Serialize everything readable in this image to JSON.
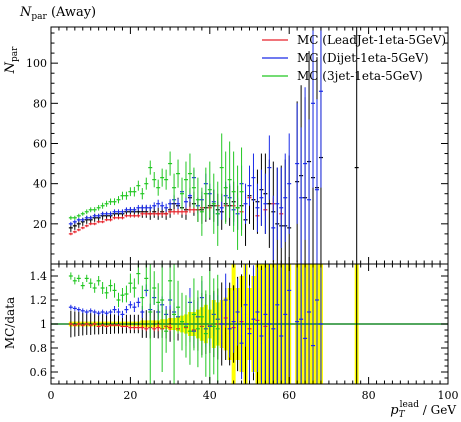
{
  "chart_data": {
    "type": "scatter",
    "title": "N_par (Away)",
    "title_main": "N",
    "title_sub": "par",
    "title_suffix": " (Away)",
    "ylabel_main": "N",
    "ylabel_sub": "par",
    "xlabel_main": "p",
    "xlabel_sub": "T",
    "xlabel_sup": "lead",
    "xlabel_suffix": " / GeV",
    "ratio_ylabel": "MC/data",
    "xlim": [
      0,
      100
    ],
    "ylim": [
      0,
      118
    ],
    "ratio_ylim": [
      0.5,
      1.5
    ],
    "x_ticks": [
      "0",
      "20",
      "40",
      "60",
      "80",
      "100"
    ],
    "y_ticks": [
      "20",
      "40",
      "60",
      "80",
      "100"
    ],
    "ratio_y_ticks": [
      "0.6",
      "0.8",
      "1",
      "1.2",
      "1.4"
    ],
    "legend_position": "top-right",
    "colors": {
      "data": "#000000",
      "red": "#e8222a",
      "blue": "#1a2be8",
      "green": "#22c722",
      "band": "#ffff00",
      "unity": "#1a8a2a"
    },
    "data": {
      "x": [
        5,
        6,
        7,
        8,
        9,
        10,
        11,
        12,
        13,
        14,
        15,
        16,
        17,
        18,
        19,
        20,
        21,
        22,
        23,
        24,
        25,
        26,
        27,
        28,
        29,
        30,
        31,
        32,
        33,
        34,
        35,
        36,
        37,
        38,
        39,
        40,
        41,
        42,
        43,
        44,
        45,
        46,
        47,
        48,
        49,
        50,
        51,
        52,
        53,
        54,
        55,
        56,
        57,
        58,
        59,
        60,
        62,
        63,
        64,
        65,
        66,
        67,
        68,
        77
      ],
      "y": [
        18,
        19,
        20,
        21,
        22,
        22,
        23,
        23,
        24,
        24,
        24,
        25,
        25,
        25,
        26,
        26,
        26,
        26,
        26,
        26,
        25,
        26,
        25,
        26,
        25,
        27,
        30,
        29,
        28,
        27,
        33,
        30,
        27,
        27,
        28,
        29,
        29,
        27,
        26,
        30,
        29,
        31,
        28,
        29,
        22,
        34,
        32,
        31,
        37,
        35,
        30,
        26,
        20,
        19,
        19,
        18,
        41,
        44,
        33,
        51,
        43,
        38,
        53,
        48
      ],
      "err": [
        2,
        2,
        2,
        2,
        2,
        2,
        2,
        2,
        2,
        2,
        2,
        2,
        2,
        2,
        2,
        2,
        2,
        2,
        3,
        3,
        3,
        3,
        3,
        3,
        3,
        4,
        4,
        4,
        5,
        5,
        5,
        6,
        6,
        7,
        7,
        7,
        8,
        8,
        9,
        9,
        10,
        10,
        11,
        12,
        13,
        14,
        15,
        16,
        18,
        20,
        22,
        25,
        28,
        30,
        33,
        36,
        40,
        45,
        50,
        55,
        60,
        65,
        70,
        85
      ]
    },
    "series": [
      {
        "name": "MC (LeadJet-1eta-5GeV)",
        "color": "#e8222a",
        "x": [
          5,
          6,
          7,
          8,
          9,
          10,
          11,
          12,
          13,
          14,
          15,
          16,
          17,
          18,
          19,
          20,
          21,
          22,
          23,
          24,
          25,
          26,
          27,
          28,
          29,
          30,
          31,
          32,
          33,
          34,
          35,
          36,
          37,
          38,
          40,
          42,
          44,
          46,
          48,
          50,
          52,
          54,
          56,
          58
        ],
        "y": [
          15,
          16,
          17,
          18,
          19,
          20,
          20,
          21,
          21,
          22,
          22,
          23,
          23,
          23,
          24,
          24,
          24,
          24,
          25,
          25,
          25,
          25,
          25,
          25,
          25,
          26,
          26,
          26,
          26,
          26,
          27,
          27,
          27,
          28,
          28,
          29,
          29,
          29,
          26,
          33,
          24,
          27,
          30,
          25
        ],
        "err": [
          0.7,
          0.7,
          0.7,
          0.7,
          0.7,
          0.7,
          0.7,
          0.7,
          0.7,
          0.7,
          0.8,
          0.8,
          0.8,
          0.8,
          0.8,
          0.9,
          0.9,
          0.9,
          1,
          1,
          1,
          1,
          1.2,
          1.2,
          1.2,
          1.2,
          1.4,
          1.4,
          1.4,
          1.5,
          1.5,
          1.5,
          1.7,
          1.7,
          1.8,
          2,
          2,
          2.2,
          2.4,
          2.6,
          2.8,
          3,
          3,
          3
        ]
      },
      {
        "name": "MC (Dijet-1eta-5GeV)",
        "color": "#1a2be8",
        "x": [
          5,
          6,
          7,
          8,
          9,
          10,
          11,
          12,
          13,
          14,
          15,
          16,
          17,
          18,
          19,
          20,
          21,
          22,
          23,
          24,
          25,
          26,
          27,
          28,
          29,
          30,
          31,
          32,
          33,
          34,
          35,
          36,
          37,
          38,
          39,
          40,
          41,
          42,
          43,
          44,
          45,
          46,
          47,
          48,
          49,
          50,
          51,
          52,
          53,
          54,
          55,
          56,
          57,
          58,
          59,
          60,
          62,
          63,
          64,
          65,
          66,
          67,
          68
        ],
        "y": [
          20,
          21,
          22,
          22,
          23,
          23,
          24,
          24,
          25,
          25,
          25,
          26,
          26,
          26,
          27,
          27,
          27,
          28,
          28,
          28,
          28,
          29,
          30,
          29,
          28,
          30,
          32,
          30,
          36,
          31,
          34,
          43,
          29,
          32,
          40,
          35,
          31,
          25,
          28,
          34,
          33,
          27,
          25,
          40,
          30,
          39,
          43,
          28,
          33,
          30,
          48,
          18,
          30,
          28,
          33,
          40,
          50,
          33,
          50,
          32,
          80,
          37,
          86
        ],
        "err": [
          1,
          1,
          1,
          1,
          1,
          1,
          1,
          1,
          1,
          1,
          1.2,
          1.2,
          1.2,
          1.2,
          1.2,
          1.4,
          1.4,
          1.4,
          1.5,
          1.5,
          1.5,
          1.7,
          2,
          2,
          2,
          2.2,
          2.5,
          2.5,
          3,
          3,
          3,
          4,
          4,
          4,
          5,
          5,
          6,
          6,
          6,
          7,
          7,
          8,
          8,
          9,
          10,
          10,
          12,
          12,
          14,
          15,
          16,
          16,
          18,
          20,
          22,
          25,
          30,
          35,
          38,
          40,
          42,
          45,
          48
        ]
      },
      {
        "name": "MC (3jet-1eta-5GeV)",
        "color": "#22c722",
        "x": [
          5,
          6,
          7,
          8,
          9,
          10,
          11,
          12,
          13,
          14,
          15,
          16,
          17,
          18,
          19,
          20,
          21,
          22,
          23,
          24,
          25,
          26,
          27,
          28,
          29,
          30,
          31,
          32,
          33,
          34,
          35,
          36,
          37,
          38,
          39,
          40,
          41,
          42,
          43,
          44,
          45,
          46,
          47,
          48
        ],
        "y": [
          23,
          23,
          24,
          25,
          26,
          27,
          27,
          28,
          29,
          30,
          31,
          31,
          32,
          34,
          34,
          36,
          36,
          39,
          35,
          40,
          48,
          42,
          38,
          43,
          42,
          50,
          38,
          45,
          35,
          42,
          45,
          38,
          32,
          26,
          35,
          37,
          30,
          25,
          48,
          38,
          42,
          36,
          28,
          36
        ],
        "err": [
          1,
          1,
          1,
          1,
          1.2,
          1.2,
          1.3,
          1.4,
          1.5,
          1.5,
          1.6,
          1.7,
          1.8,
          2,
          2,
          2.2,
          2.4,
          2.5,
          2.8,
          3,
          3.5,
          3.8,
          4,
          4.5,
          5,
          6,
          7,
          7,
          8,
          9,
          10,
          10,
          11,
          12,
          13,
          14,
          15,
          16,
          17,
          18,
          19,
          20,
          21,
          22
        ]
      }
    ],
    "ratio": {
      "band_x": [
        5,
        6,
        7,
        8,
        9,
        10,
        11,
        12,
        13,
        14,
        15,
        16,
        17,
        18,
        19,
        20,
        21,
        22,
        23,
        24,
        25,
        26,
        27,
        28,
        29,
        30,
        31,
        32,
        33,
        34,
        35,
        36,
        37,
        38,
        39,
        40,
        41,
        42,
        43,
        44,
        45,
        46,
        47,
        48,
        49,
        50,
        51,
        52,
        53,
        54,
        55,
        56,
        57,
        58,
        59,
        60,
        62,
        63,
        64,
        65,
        66,
        67,
        68,
        77
      ],
      "band_half_width": [
        0.02,
        0.02,
        0.02,
        0.02,
        0.02,
        0.02,
        0.02,
        0.02,
        0.02,
        0.02,
        0.02,
        0.02,
        0.02,
        0.02,
        0.02,
        0.02,
        0.02,
        0.02,
        0.03,
        0.03,
        0.03,
        0.03,
        0.03,
        0.04,
        0.04,
        0.05,
        0.05,
        0.06,
        0.07,
        0.08,
        0.1,
        0.1,
        0.12,
        0.14,
        0.16,
        0.12,
        0.2,
        0.18,
        0.2,
        0.22,
        0.3,
        0.55,
        0.3,
        0.4,
        0.55,
        0.3,
        0.4,
        0.6,
        0.7,
        0.5,
        0.8,
        0.6,
        0.7,
        0.7,
        0.8,
        0.9,
        0.9,
        1,
        1,
        1,
        1,
        1,
        1,
        1
      ],
      "series": [
        {
          "name": "MC (LeadJet-1eta-5GeV)",
          "color": "#e8222a",
          "x": [
            5,
            6,
            7,
            8,
            9,
            10,
            11,
            12,
            13,
            14,
            15,
            16,
            17,
            18,
            19,
            20,
            21,
            22,
            23,
            24,
            25,
            26,
            27,
            28,
            29,
            30,
            32,
            34,
            36,
            38,
            40,
            42,
            44,
            46,
            48,
            50,
            52,
            54
          ],
          "y": [
            1,
            0.99,
            1,
            0.99,
            1,
            0.99,
            1,
            0.98,
            0.99,
            0.98,
            0.99,
            0.99,
            0.99,
            0.98,
            0.98,
            0.97,
            0.97,
            0.97,
            0.97,
            0.96,
            0.97,
            0.96,
            0.97,
            0.96,
            0.98,
            0.97,
            0.96,
            0.97,
            0.95,
            0.98,
            0.99,
            1,
            1.05,
            0.97,
            1.02,
            0.96,
            1.03,
            0.98
          ],
          "err": [
            0.01,
            0.01,
            0.01,
            0.01,
            0.01,
            0.01,
            0.01,
            0.01,
            0.01,
            0.01,
            0.01,
            0.01,
            0.01,
            0.01,
            0.01,
            0.02,
            0.02,
            0.02,
            0.02,
            0.02,
            0.02,
            0.02,
            0.03,
            0.03,
            0.03,
            0.03,
            0.04,
            0.05,
            0.05,
            0.06,
            0.06,
            0.07,
            0.08,
            0.1,
            0.1,
            0.12,
            0.12,
            0.14
          ]
        },
        {
          "name": "MC (Dijet-1eta-5GeV)",
          "color": "#1a2be8",
          "x": [
            5,
            6,
            7,
            8,
            9,
            10,
            11,
            12,
            13,
            14,
            15,
            16,
            17,
            18,
            19,
            20,
            21,
            22,
            23,
            24,
            25,
            26,
            27,
            28,
            29,
            30,
            31,
            32,
            33,
            34,
            35,
            36,
            37,
            38,
            39,
            40,
            41,
            42,
            43,
            44,
            45,
            46,
            47,
            48,
            49,
            50,
            51,
            52,
            53,
            54,
            55,
            56,
            57,
            58,
            59,
            60,
            62,
            63,
            64,
            65,
            66,
            67,
            68
          ],
          "y": [
            1.14,
            1.13,
            1.12,
            1.11,
            1.1,
            1.11,
            1.1,
            1.09,
            1.1,
            1.09,
            1.1,
            1.12,
            1.1,
            1.08,
            1.12,
            1.16,
            1.14,
            1.18,
            1.1,
            1.28,
            1.12,
            1.22,
            1.1,
            1.16,
            1.08,
            1.2,
            1.1,
            1.06,
            1.02,
            1.0,
            1.18,
            0.94,
            1.06,
            1.22,
            0.96,
            0.98,
            1.08,
            1.04,
            1.0,
            1.2,
            0.96,
            1.02,
            1.1,
            0.84,
            1.16,
            0.92,
            1.04,
            1.1,
            0.9,
            1.08,
            1.0,
            0.96,
            1.16,
            0.9,
            1.08,
            1.28,
            1.02,
            1.04,
            0.88,
            1.1,
            0.82,
            1.2,
            1.0
          ],
          "err": [
            0.02,
            0.02,
            0.02,
            0.02,
            0.02,
            0.02,
            0.02,
            0.02,
            0.02,
            0.02,
            0.02,
            0.03,
            0.03,
            0.03,
            0.03,
            0.03,
            0.04,
            0.04,
            0.05,
            0.05,
            0.05,
            0.06,
            0.06,
            0.07,
            0.07,
            0.08,
            0.08,
            0.09,
            0.1,
            0.1,
            0.12,
            0.12,
            0.13,
            0.14,
            0.15,
            0.16,
            0.18,
            0.2,
            0.2,
            0.22,
            0.24,
            0.26,
            0.28,
            0.3,
            0.35,
            0.4,
            0.45,
            0.5,
            0.55,
            0.6,
            0.65,
            0.7,
            0.75,
            0.8,
            0.85,
            0.9,
            0.95,
            1,
            1,
            1,
            1,
            1,
            1
          ]
        },
        {
          "name": "MC (3jet-1eta-5GeV)",
          "color": "#22c722",
          "x": [
            5,
            6,
            7,
            8,
            9,
            10,
            11,
            12,
            13,
            14,
            15,
            16,
            17,
            18,
            19,
            20,
            21,
            22,
            23,
            24,
            25,
            26,
            27,
            28,
            29,
            30,
            31,
            32,
            33,
            34,
            35,
            36,
            37,
            38,
            39,
            40,
            41,
            42
          ],
          "y": [
            1.4,
            1.36,
            1.38,
            1.32,
            1.38,
            1.34,
            1.3,
            1.36,
            1.3,
            1.26,
            1.32,
            1.28,
            1.2,
            1.24,
            1.25,
            1.34,
            1.3,
            1.42,
            1.22,
            1.38,
            1.1,
            1.3,
            1.18,
            1.2,
            0.94,
            1.36,
            1.08,
            1.14,
            1.02,
            0.98,
            0.94,
            1.08,
            0.96,
            1.06,
            0.92,
            1.0,
            0.98,
            0.96
          ],
          "err": [
            0.03,
            0.03,
            0.03,
            0.03,
            0.03,
            0.04,
            0.04,
            0.04,
            0.05,
            0.05,
            0.05,
            0.06,
            0.06,
            0.06,
            0.07,
            0.08,
            0.08,
            0.09,
            0.1,
            0.12,
            0.7,
            0.14,
            0.16,
            0.6,
            0.18,
            0.2,
            0.7,
            0.22,
            0.24,
            0.26,
            0.28,
            0.3,
            0.32,
            0.34,
            0.36,
            0.6,
            0.4,
            0.45
          ]
        }
      ]
    }
  }
}
